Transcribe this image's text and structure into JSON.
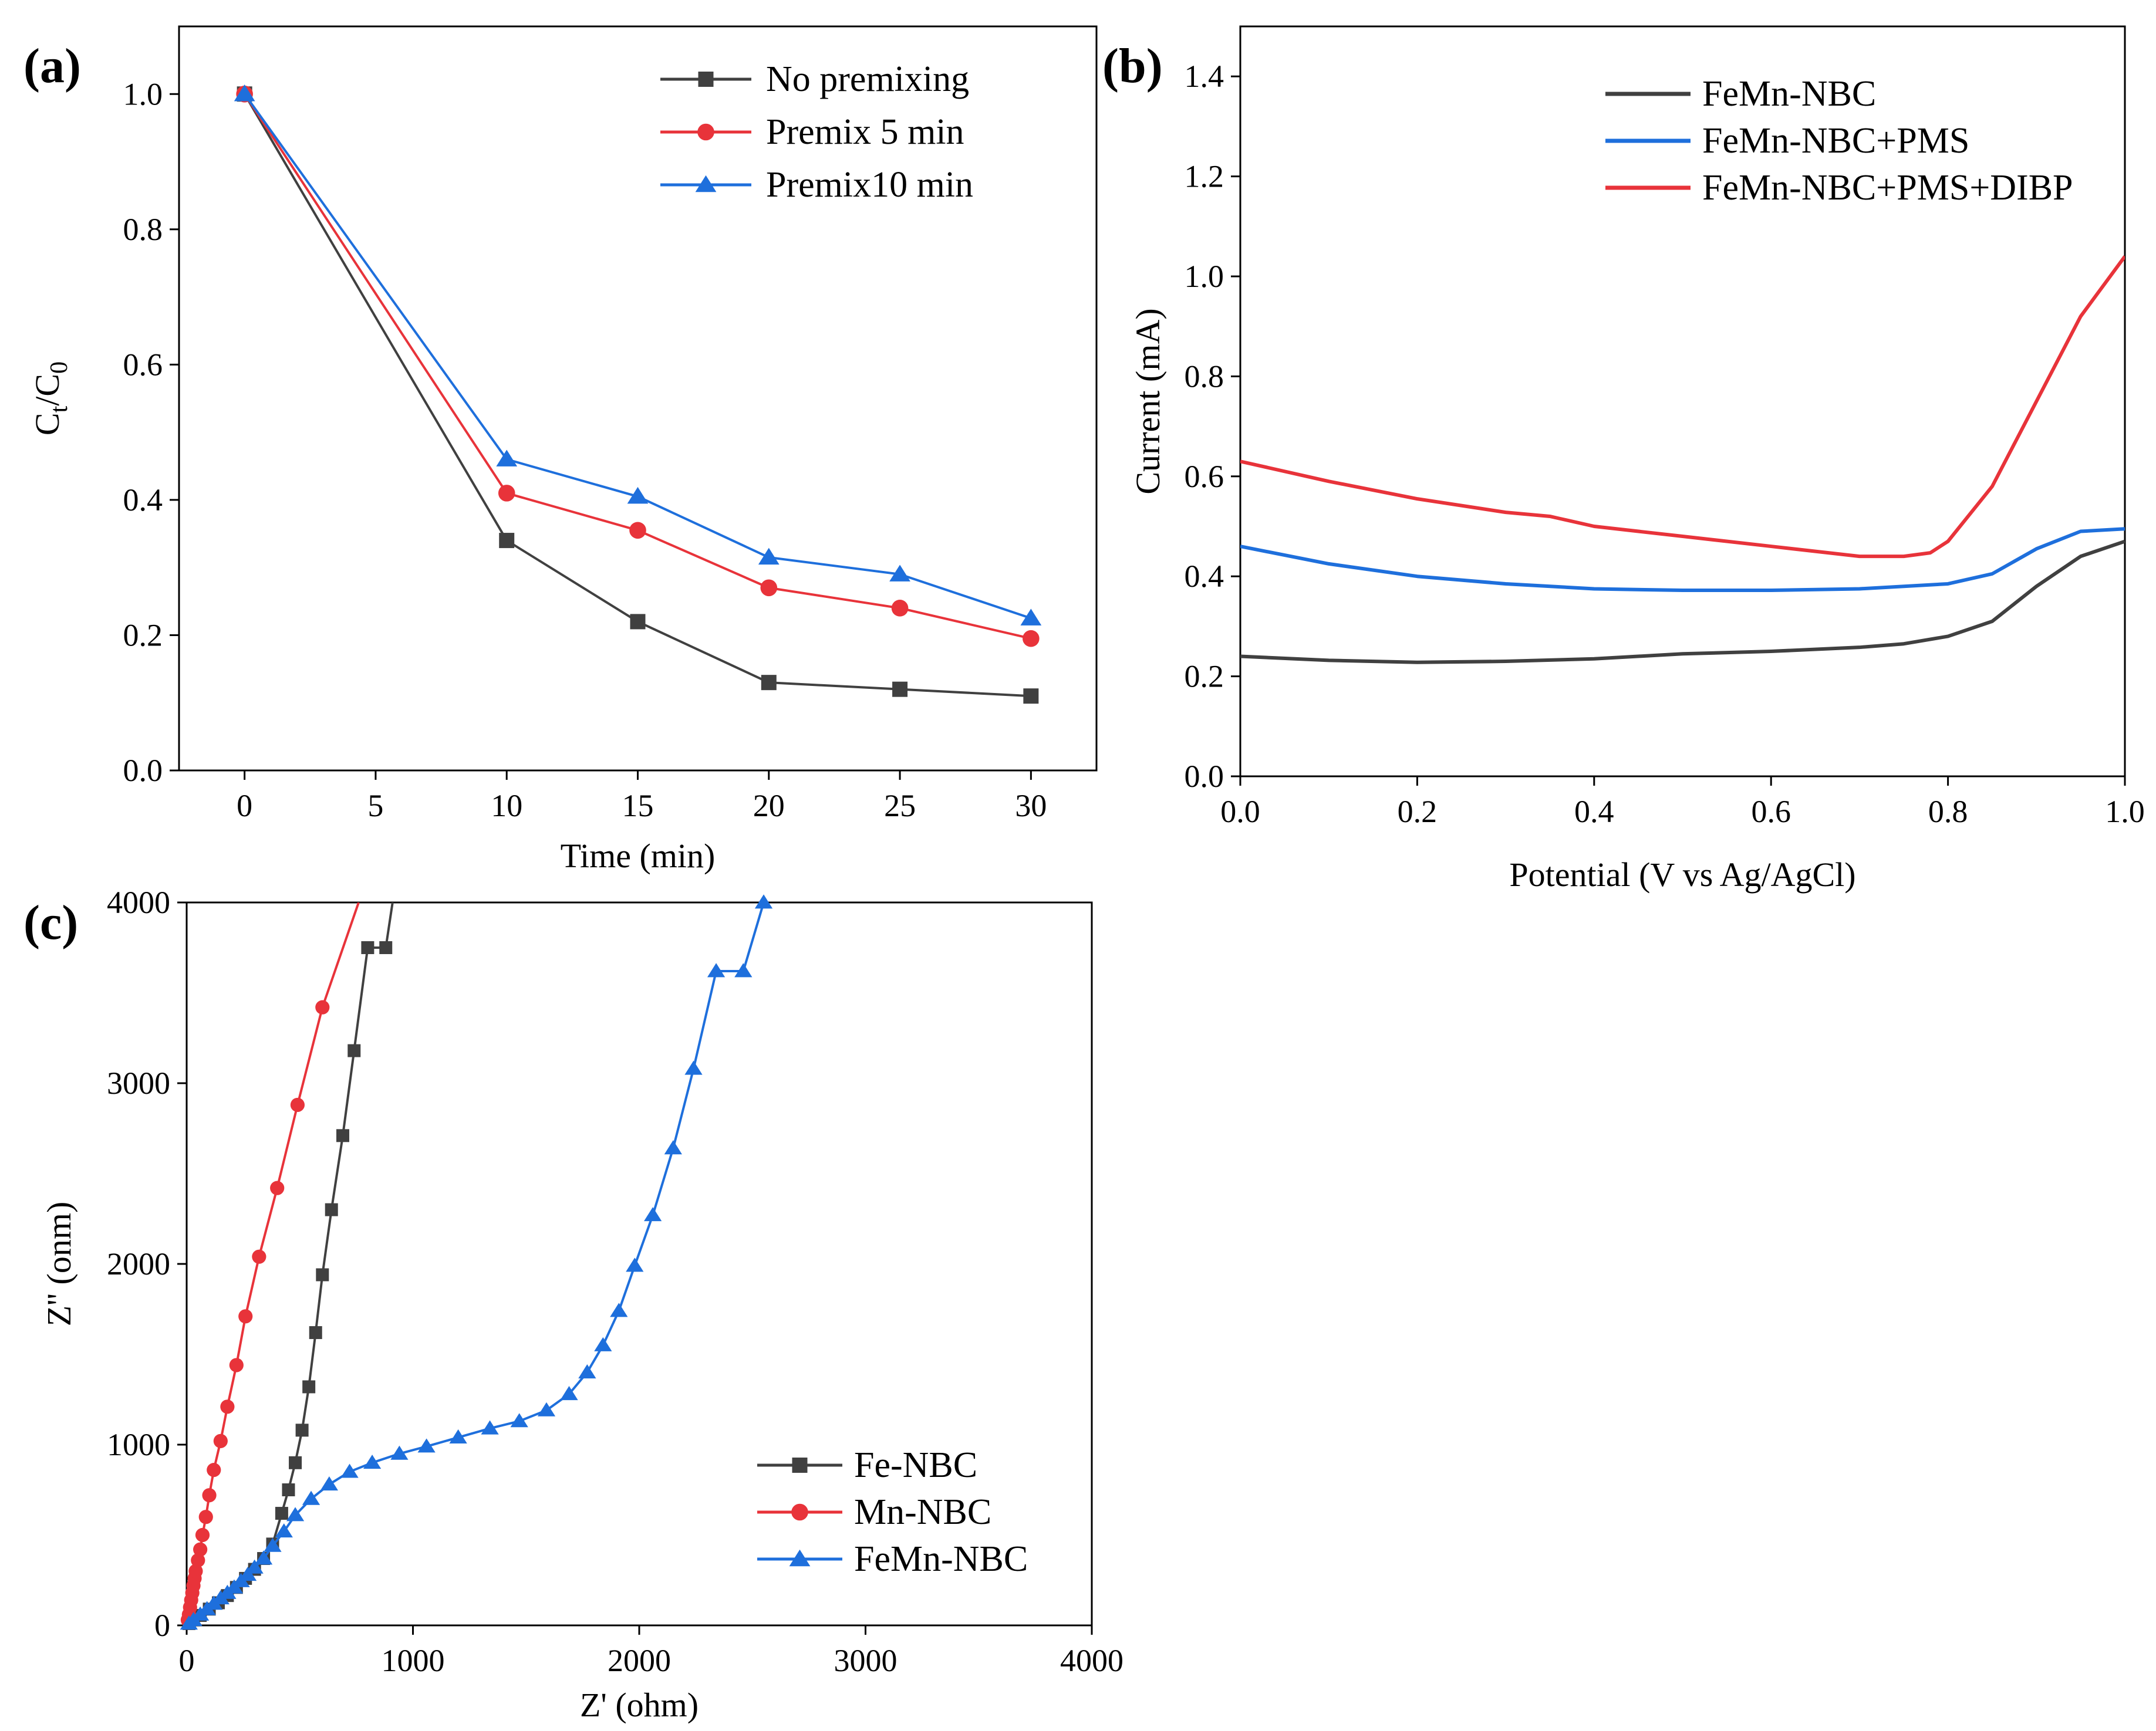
{
  "chart_data": [
    {
      "type": "line",
      "panel_label": "(a)",
      "xlabel": "Time (min)",
      "ylabel_main": "C",
      "ylabel_sub1": "t",
      "ylabel_mid": "/C",
      "ylabel_sub2": "0",
      "xlim": [
        -2.5,
        32.5
      ],
      "ylim": [
        0,
        1.1
      ],
      "xticks": [
        0,
        5,
        10,
        15,
        20,
        25,
        30
      ],
      "xtick_labels": [
        "0",
        "5",
        "10",
        "15",
        "20",
        "25",
        "30"
      ],
      "yticks": [
        0.0,
        0.2,
        0.4,
        0.6,
        0.8,
        1.0
      ],
      "ytick_labels": [
        "0.0",
        "0.2",
        "0.4",
        "0.6",
        "0.8",
        "1.0"
      ],
      "legend_position": "top-right",
      "series": [
        {
          "name": "No premixing",
          "color": "#404040",
          "marker": "square",
          "x": [
            0,
            10,
            15,
            20,
            25,
            30
          ],
          "y": [
            1.0,
            0.34,
            0.22,
            0.13,
            0.12,
            0.11
          ]
        },
        {
          "name": "Premix 5 min",
          "color": "#e8333a",
          "marker": "circle",
          "x": [
            0,
            10,
            15,
            20,
            25,
            30
          ],
          "y": [
            1.0,
            0.41,
            0.355,
            0.27,
            0.24,
            0.195
          ]
        },
        {
          "name": "Premix10 min",
          "color": "#1e6fdc",
          "marker": "triangle",
          "x": [
            0,
            10,
            15,
            20,
            25,
            30
          ],
          "y": [
            1.0,
            0.46,
            0.405,
            0.315,
            0.29,
            0.225
          ]
        }
      ]
    },
    {
      "type": "line",
      "panel_label": "(b)",
      "xlabel": "Potential (V vs Ag/AgCl)",
      "ylabel": "Current (mA)",
      "xlim": [
        0,
        1.0
      ],
      "ylim": [
        0,
        1.5
      ],
      "xticks": [
        0.0,
        0.2,
        0.4,
        0.6,
        0.8,
        1.0
      ],
      "xtick_labels": [
        "0.0",
        "0.2",
        "0.4",
        "0.6",
        "0.8",
        "1.0"
      ],
      "yticks": [
        0.0,
        0.2,
        0.4,
        0.6,
        0.8,
        1.0,
        1.2,
        1.4
      ],
      "ytick_labels": [
        "0.0",
        "0.2",
        "0.4",
        "0.6",
        "0.8",
        "1.0",
        "1.2",
        "1.4"
      ],
      "legend_position": "top-center",
      "series": [
        {
          "name": "FeMn-NBC",
          "color": "#404040",
          "x": [
            0,
            0.1,
            0.2,
            0.3,
            0.4,
            0.5,
            0.6,
            0.7,
            0.75,
            0.8,
            0.85,
            0.9,
            0.95,
            1.0
          ],
          "y": [
            0.24,
            0.232,
            0.228,
            0.23,
            0.235,
            0.245,
            0.25,
            0.258,
            0.265,
            0.28,
            0.31,
            0.38,
            0.44,
            0.47
          ]
        },
        {
          "name": "FeMn-NBC+PMS",
          "color": "#1e6fdc",
          "x": [
            0,
            0.1,
            0.2,
            0.3,
            0.4,
            0.5,
            0.6,
            0.7,
            0.8,
            0.85,
            0.9,
            0.95,
            1.0
          ],
          "y": [
            0.46,
            0.425,
            0.4,
            0.385,
            0.375,
            0.372,
            0.372,
            0.375,
            0.385,
            0.405,
            0.455,
            0.49,
            0.495
          ]
        },
        {
          "name": "FeMn-NBC+PMS+DIBP",
          "color": "#e8333a",
          "x": [
            0,
            0.1,
            0.2,
            0.3,
            0.35,
            0.36,
            0.4,
            0.5,
            0.6,
            0.7,
            0.75,
            0.78,
            0.8,
            0.85,
            0.9,
            0.95,
            1.0
          ],
          "y": [
            0.63,
            0.59,
            0.555,
            0.528,
            0.52,
            0.516,
            0.5,
            0.48,
            0.46,
            0.44,
            0.44,
            0.447,
            0.47,
            0.58,
            0.75,
            0.92,
            1.04
          ]
        }
      ]
    },
    {
      "type": "scatter",
      "panel_label": "(c)",
      "xlabel": "Z' (ohm)",
      "ylabel": "Z'' (onm)",
      "xlim": [
        0,
        4000
      ],
      "ylim": [
        0,
        4000
      ],
      "xticks": [
        0,
        1000,
        2000,
        3000,
        4000
      ],
      "xtick_labels": [
        "0",
        "1000",
        "2000",
        "3000",
        "4000"
      ],
      "yticks": [
        0,
        1000,
        2000,
        3000,
        4000
      ],
      "ytick_labels": [
        "0",
        "1000",
        "2000",
        "3000",
        "4000"
      ],
      "legend_position": "bottom-right",
      "series": [
        {
          "name": "Fe-NBC",
          "color": "#404040",
          "marker": "square",
          "x": [
            10,
            30,
            60,
            100,
            140,
            180,
            220,
            260,
            300,
            340,
            380,
            420,
            450,
            480,
            510,
            540,
            570,
            600,
            640,
            690,
            740,
            800,
            880,
            910
          ],
          "y": [
            10,
            30,
            55,
            90,
            125,
            165,
            210,
            260,
            310,
            370,
            450,
            620,
            750,
            900,
            1080,
            1320,
            1620,
            1940,
            2300,
            2710,
            3180,
            3750,
            3750,
            4000
          ],
          "markers_until": 22
        },
        {
          "name": "Mn-NBC",
          "color": "#e8333a",
          "marker": "circle",
          "x": [
            5,
            10,
            15,
            20,
            25,
            30,
            35,
            40,
            50,
            60,
            70,
            85,
            100,
            120,
            150,
            180,
            220,
            260,
            320,
            400,
            490,
            600,
            760
          ],
          "y": [
            30,
            60,
            100,
            140,
            180,
            220,
            260,
            300,
            360,
            420,
            500,
            600,
            720,
            860,
            1020,
            1210,
            1440,
            1710,
            2040,
            2420,
            2880,
            3420,
            4000
          ],
          "markers_until": 21
        },
        {
          "name": "FeMn-NBC",
          "color": "#1e6fdc",
          "marker": "triangle",
          "x": [
            10,
            30,
            60,
            90,
            120,
            150,
            180,
            210,
            240,
            270,
            300,
            340,
            380,
            430,
            480,
            550,
            630,
            720,
            820,
            940,
            1060,
            1200,
            1340,
            1470,
            1590,
            1690,
            1770,
            1840,
            1910,
            1980,
            2060,
            2150,
            2240,
            2340,
            2460,
            2550
          ],
          "y": [
            10,
            30,
            60,
            90,
            120,
            150,
            180,
            210,
            245,
            280,
            320,
            370,
            440,
            520,
            610,
            700,
            780,
            850,
            900,
            950,
            990,
            1040,
            1090,
            1130,
            1190,
            1280,
            1400,
            1550,
            1740,
            1990,
            2270,
            2640,
            3080,
            3620,
            3620,
            4000
          ],
          "markers_until": 35
        }
      ]
    }
  ]
}
